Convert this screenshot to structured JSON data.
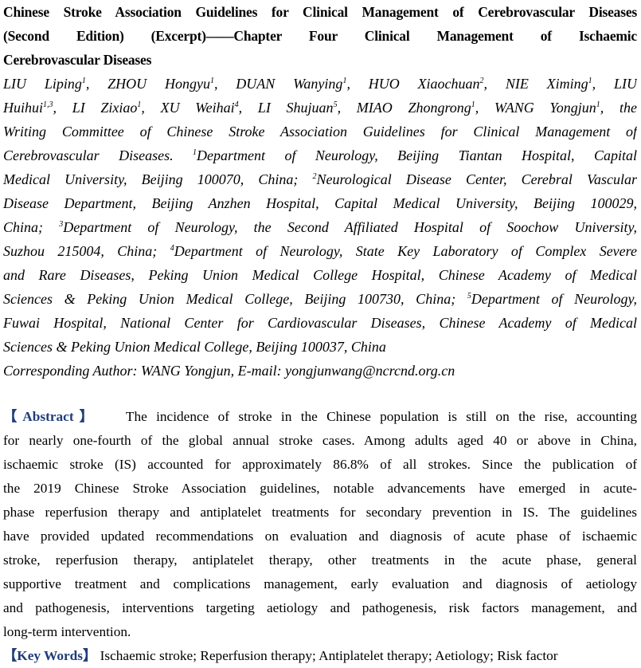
{
  "title": {
    "lines": [
      "Chinese Stroke Association Guidelines for Clinical Management of Cerebrovascular Diseases",
      "(Second Edition) (Excerpt)——Chapter Four   Clinical Management of Ischaemic",
      "Cerebrovascular Diseases"
    ]
  },
  "authors": {
    "lines": [
      [
        {
          "t": "LIU Liping"
        },
        {
          "s": "1"
        },
        {
          "t": ", ZHOU Hongyu"
        },
        {
          "s": "1"
        },
        {
          "t": ", DUAN Wanying"
        },
        {
          "s": "1"
        },
        {
          "t": ", HUO Xiaochuan"
        },
        {
          "s": "2"
        },
        {
          "t": ", NIE Ximing"
        },
        {
          "s": "1"
        },
        {
          "t": ", LIU"
        }
      ],
      [
        {
          "t": "Huihui"
        },
        {
          "s": "1,3"
        },
        {
          "t": ", LI Zixiao"
        },
        {
          "s": "1"
        },
        {
          "t": ", XU Weihai"
        },
        {
          "s": "4"
        },
        {
          "t": ", LI Shujuan"
        },
        {
          "s": "5"
        },
        {
          "t": ", MIAO Zhongrong"
        },
        {
          "s": "1"
        },
        {
          "t": ", WANG Yongjun"
        },
        {
          "s": "1"
        },
        {
          "t": ", the"
        }
      ],
      [
        {
          "t": "Writing Committee of Chinese Stroke Association Guidelines for Clinical Management of"
        }
      ],
      [
        {
          "t": "Cerebrovascular Diseases. "
        },
        {
          "s": "1"
        },
        {
          "t": "Department of Neurology, Beijing Tiantan Hospital, Capital"
        }
      ],
      [
        {
          "t": "Medical University, Beijing 100070, China; "
        },
        {
          "s": "2"
        },
        {
          "t": "Neurological Disease Center, Cerebral Vascular"
        }
      ],
      [
        {
          "t": "Disease Department, Beijing Anzhen Hospital, Capital Medical University, Beijing 100029,"
        }
      ],
      [
        {
          "t": "China; "
        },
        {
          "s": "3"
        },
        {
          "t": "Department of Neurology, the Second Affiliated Hospital of Soochow University,"
        }
      ],
      [
        {
          "t": "Suzhou 215004, China; "
        },
        {
          "s": "4"
        },
        {
          "t": "Department of Neurology, State Key Laboratory of Complex Severe"
        }
      ],
      [
        {
          "t": "and Rare Diseases, Peking Union Medical College Hospital, Chinese Academy of Medical"
        }
      ],
      [
        {
          "t": "Sciences & Peking Union Medical College, Beijing 100730, China; "
        },
        {
          "s": "5"
        },
        {
          "t": "Department of Neurology,"
        }
      ],
      [
        {
          "t": "Fuwai Hospital, National Center for Cardiovascular Diseases, Chinese Academy of Medical"
        }
      ],
      [
        {
          "t": "Sciences & Peking Union Medical College, Beijing 100037, China"
        }
      ],
      [
        {
          "t": "Corresponding Author: WANG Yongjun, E-mail: yongjunwang@ncrcnd.org.cn"
        }
      ]
    ]
  },
  "abstract": {
    "label": "【Abstract】",
    "lines": [
      "   The incidence of stroke in the Chinese population is still on the rise, accounting",
      "for nearly one-fourth of the global annual stroke cases. Among adults aged 40 or above in China,",
      "ischaemic stroke (IS) accounted for approximately 86.8% of all strokes. Since the publication of",
      "the 2019 Chinese Stroke Association guidelines, notable advancements have emerged in acute-",
      "phase reperfusion therapy and antiplatelet treatments for secondary prevention in IS. The guidelines",
      "have provided updated recommendations on evaluation and diagnosis of acute phase of ischaemic",
      "stroke, reperfusion therapy, antiplatelet therapy, other treatments in the acute phase, general",
      "supportive treatment and complications management, early evaluation and diagnosis of aetiology",
      "and pathogenesis, interventions targeting aetiology and pathogenesis, risk factors management, and",
      "long-term intervention."
    ]
  },
  "keywords": {
    "label": "【Key Words】",
    "text": "  Ischaemic stroke; Reperfusion therapy; Antiplatelet therapy; Aetiology; Risk factor"
  },
  "colors": {
    "label": "#1f3d7a",
    "text": "#000000"
  }
}
